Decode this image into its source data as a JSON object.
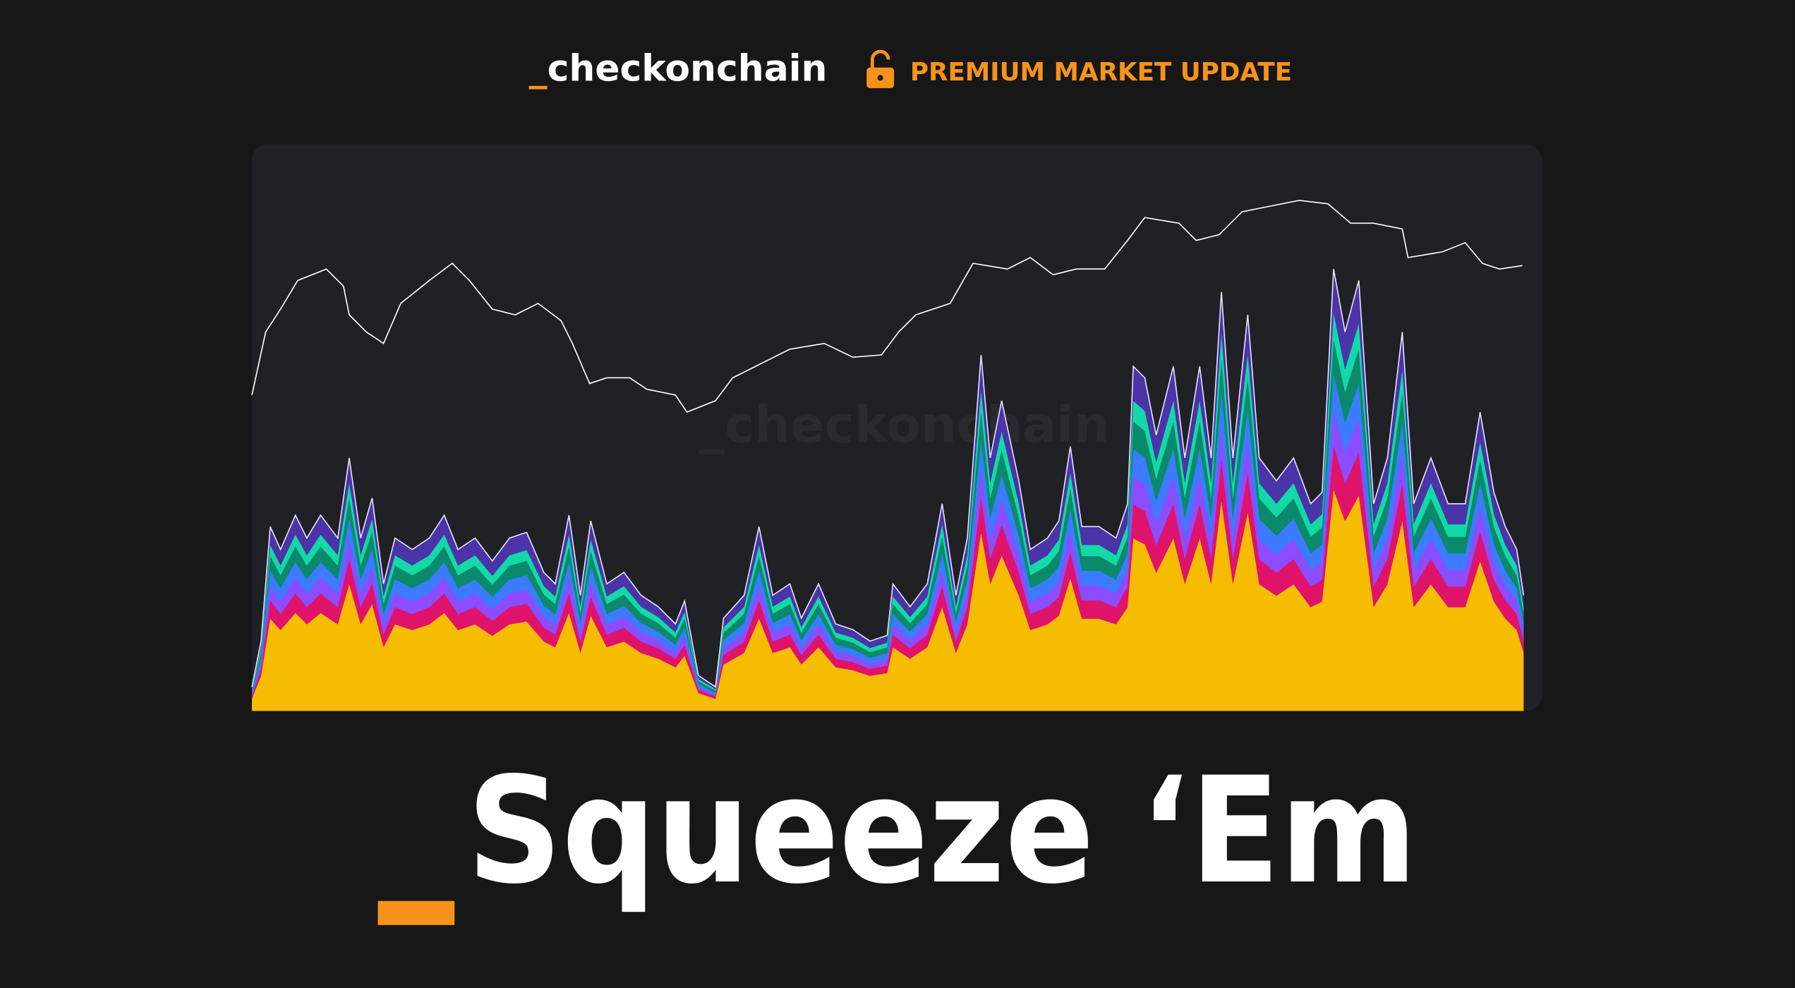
{
  "header": {
    "brand": {
      "prefix": "_",
      "name": "checkonchain"
    },
    "badge": "PREMIUM MARKET UPDATE"
  },
  "watermark": "_checkonchain",
  "title": "Squeeze ‘Em"
}
